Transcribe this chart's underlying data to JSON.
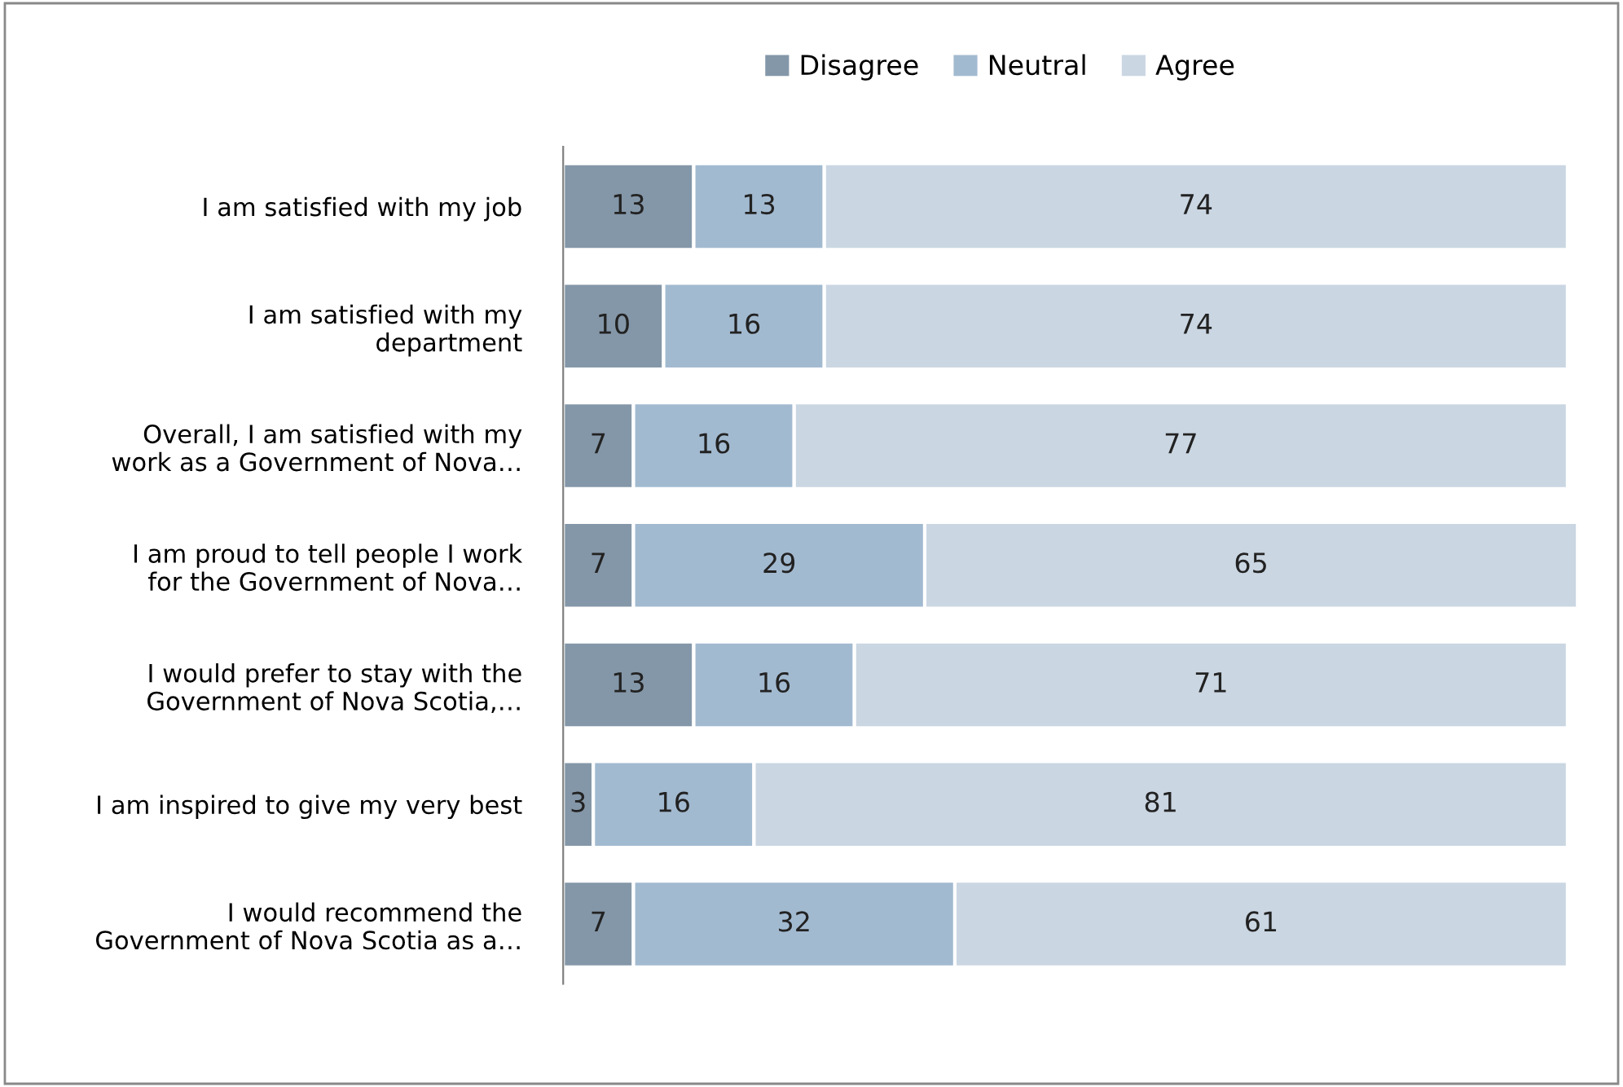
{
  "chart_data": {
    "type": "bar",
    "orientation": "horizontal",
    "stacked": true,
    "data_labels": true,
    "legend": "top",
    "grid": false,
    "categories": [
      "I am satisfied with my job",
      "I am satisfied with my\ndepartment",
      "Overall, I am satisfied with my\nwork as a Government of Nova…",
      "I am proud to tell people I work\nfor the Government of Nova…",
      "I would prefer to stay with the\nGovernment of Nova Scotia,…",
      "I am inspired to give my very best",
      "I would recommend the\nGovernment of Nova Scotia as a…"
    ],
    "series": [
      {
        "name": "Disagree",
        "color": "#8497a8",
        "values": [
          13,
          10,
          7,
          7,
          13,
          3,
          7
        ]
      },
      {
        "name": "Neutral",
        "color": "#a2bad0",
        "values": [
          13,
          16,
          16,
          29,
          16,
          16,
          32
        ]
      },
      {
        "name": "Agree",
        "color": "#cad6e2",
        "values": [
          74,
          74,
          77,
          65,
          71,
          81,
          61
        ]
      }
    ]
  }
}
